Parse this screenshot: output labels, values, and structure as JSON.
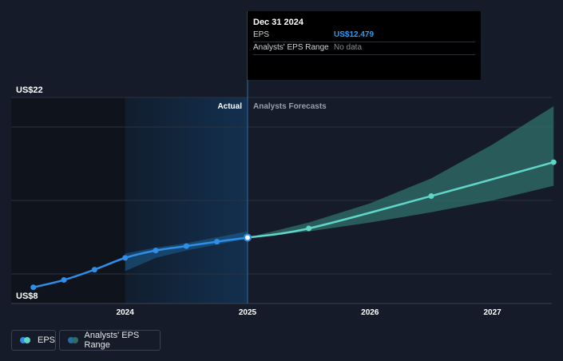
{
  "chart_data": {
    "type": "line",
    "y_axis": {
      "max_label": "US$22",
      "min_label": "US$8",
      "ylim": [
        8,
        22
      ]
    },
    "x_axis": {
      "tick_labels": [
        "2024",
        "2025",
        "2026",
        "2027"
      ],
      "tick_values": [
        2024,
        2025,
        2026,
        2027
      ],
      "xlim": [
        2023.2,
        2027.5
      ]
    },
    "grid": true,
    "section_labels": {
      "actual": "Actual",
      "forecast": "Analysts Forecasts"
    },
    "divider_x": 2025,
    "highlight_band": [
      2024,
      2025
    ],
    "series": [
      {
        "name": "EPS",
        "color": "#2e8ee8",
        "points": [
          {
            "x": 2023.25,
            "y": 9.1
          },
          {
            "x": 2023.5,
            "y": 9.6
          },
          {
            "x": 2023.75,
            "y": 10.3
          },
          {
            "x": 2024.0,
            "y": 11.1
          },
          {
            "x": 2024.25,
            "y": 11.6
          },
          {
            "x": 2024.5,
            "y": 11.9
          },
          {
            "x": 2024.75,
            "y": 12.2
          },
          {
            "x": 2025.0,
            "y": 12.479
          }
        ]
      },
      {
        "name": "EPS forecast",
        "color": "#5fd6c8",
        "points": [
          {
            "x": 2025.0,
            "y": 12.479
          },
          {
            "x": 2025.5,
            "y": 13.1
          },
          {
            "x": 2026.5,
            "y": 15.3
          },
          {
            "x": 2027.5,
            "y": 17.6
          }
        ]
      }
    ],
    "actual_range": {
      "upper": [
        {
          "x": 2024.0,
          "y": 11.4
        },
        {
          "x": 2024.25,
          "y": 11.8
        },
        {
          "x": 2024.5,
          "y": 12.1
        },
        {
          "x": 2024.75,
          "y": 12.5
        },
        {
          "x": 2025.0,
          "y": 12.9
        }
      ],
      "lower": [
        {
          "x": 2024.0,
          "y": 10.2
        },
        {
          "x": 2024.25,
          "y": 11.1
        },
        {
          "x": 2024.5,
          "y": 11.6
        },
        {
          "x": 2024.75,
          "y": 12.0
        },
        {
          "x": 2025.0,
          "y": 12.4
        }
      ]
    },
    "forecast_range": {
      "upper": [
        {
          "x": 2025.0,
          "y": 12.479
        },
        {
          "x": 2025.5,
          "y": 13.5
        },
        {
          "x": 2026.0,
          "y": 14.8
        },
        {
          "x": 2026.5,
          "y": 16.5
        },
        {
          "x": 2027.0,
          "y": 18.8
        },
        {
          "x": 2027.5,
          "y": 21.4
        }
      ],
      "lower": [
        {
          "x": 2025.0,
          "y": 12.479
        },
        {
          "x": 2025.5,
          "y": 12.9
        },
        {
          "x": 2026.0,
          "y": 13.5
        },
        {
          "x": 2026.5,
          "y": 14.2
        },
        {
          "x": 2027.0,
          "y": 15.0
        },
        {
          "x": 2027.5,
          "y": 16.0
        }
      ]
    },
    "colors": {
      "background": "#151b28",
      "history_band": "#0f131c",
      "highlight_band": "#13304f",
      "grid": "#2b3240",
      "eps": "#2e8ee8",
      "forecast": "#5fd6c8",
      "forecast_range": "#2f6b68",
      "axis_text": "#ffffff",
      "forecast_label": "#9aa0aa"
    }
  },
  "tooltip": {
    "date": "Dec 31 2024",
    "eps_label": "EPS",
    "eps_value": "US$12.479",
    "range_label": "Analysts' EPS Range",
    "range_value": "No data"
  },
  "legend": {
    "eps_label": "EPS",
    "range_label": "Analysts' EPS Range"
  }
}
